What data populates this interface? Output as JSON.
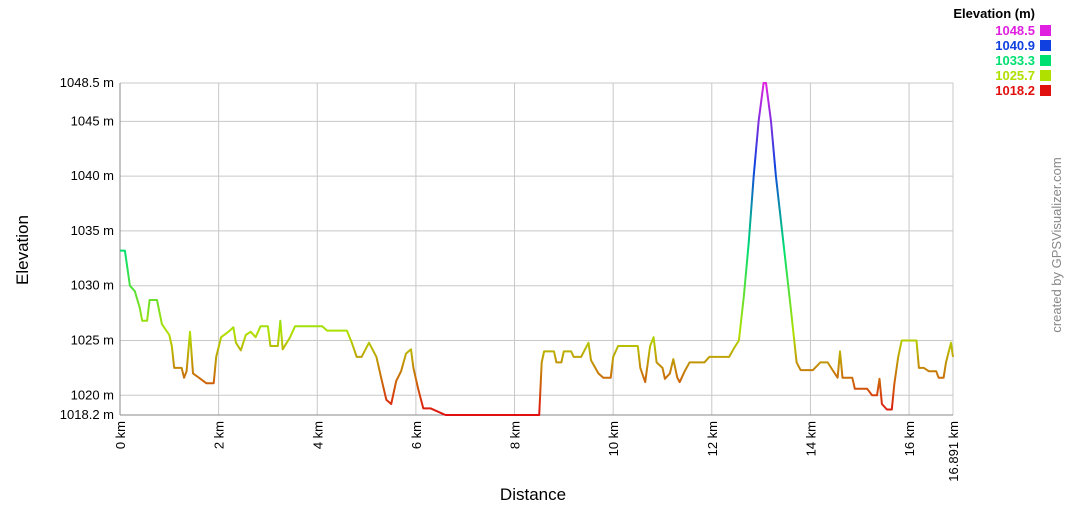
{
  "chart_data": {
    "type": "line",
    "x_label": "Distance",
    "y_label": "Elevation",
    "legend_title": "Elevation (m)",
    "legend": [
      {
        "value": 1048.5,
        "color": "#e020e0"
      },
      {
        "value": 1040.9,
        "color": "#1040e0"
      },
      {
        "value": 1033.3,
        "color": "#00e070"
      },
      {
        "value": 1025.7,
        "color": "#b0e000"
      },
      {
        "value": 1018.2,
        "color": "#e01010"
      }
    ],
    "watermark": "created by GPSVisualizer.com",
    "xlim": [
      0,
      16.891
    ],
    "ylim": [
      1018.2,
      1048.5
    ],
    "xticks": [
      {
        "value": 0,
        "label": "0 km"
      },
      {
        "value": 2,
        "label": "2 km"
      },
      {
        "value": 4,
        "label": "4 km"
      },
      {
        "value": 6,
        "label": "6 km"
      },
      {
        "value": 8,
        "label": "8 km"
      },
      {
        "value": 10,
        "label": "10 km"
      },
      {
        "value": 12,
        "label": "12 km"
      },
      {
        "value": 14,
        "label": "14 km"
      },
      {
        "value": 16,
        "label": "16 km"
      },
      {
        "value": 16.891,
        "label": "16.891 km"
      }
    ],
    "yticks": [
      {
        "value": 1018.2,
        "label": "1018.2 m"
      },
      {
        "value": 1020,
        "label": "1020 m"
      },
      {
        "value": 1025,
        "label": "1025 m"
      },
      {
        "value": 1030,
        "label": "1030 m"
      },
      {
        "value": 1035,
        "label": "1035 m"
      },
      {
        "value": 1040,
        "label": "1040 m"
      },
      {
        "value": 1045,
        "label": "1045 m"
      },
      {
        "value": 1048.5,
        "label": "1048.5 m"
      }
    ],
    "grid": true,
    "x": [
      0,
      0.1,
      0.2,
      0.3,
      0.4,
      0.45,
      0.55,
      0.6,
      0.75,
      0.85,
      1.0,
      1.05,
      1.1,
      1.25,
      1.3,
      1.35,
      1.42,
      1.48,
      1.6,
      1.75,
      1.9,
      1.95,
      2.05,
      2.2,
      2.3,
      2.35,
      2.45,
      2.55,
      2.65,
      2.75,
      2.85,
      3.0,
      3.05,
      3.2,
      3.25,
      3.3,
      3.45,
      3.55,
      4.1,
      4.2,
      4.6,
      4.7,
      4.8,
      4.9,
      5.05,
      5.2,
      5.3,
      5.4,
      5.5,
      5.6,
      5.7,
      5.8,
      5.9,
      5.95,
      6.05,
      6.15,
      6.3,
      6.6,
      8.5,
      8.55,
      8.6,
      8.8,
      8.85,
      8.95,
      9.0,
      9.15,
      9.2,
      9.35,
      9.5,
      9.55,
      9.7,
      9.8,
      9.95,
      10.0,
      10.1,
      10.5,
      10.55,
      10.65,
      10.75,
      10.82,
      10.88,
      11.0,
      11.05,
      11.15,
      11.22,
      11.3,
      11.35,
      11.45,
      11.55,
      11.85,
      11.95,
      12.35,
      12.45,
      12.55,
      12.65,
      12.75,
      12.85,
      12.95,
      13.05,
      13.1,
      13.2,
      13.3,
      13.45,
      13.6,
      13.72,
      13.8,
      14.05,
      14.2,
      14.35,
      14.45,
      14.55,
      14.6,
      14.65,
      14.85,
      14.9,
      15.15,
      15.25,
      15.35,
      15.4,
      15.45,
      15.55,
      15.65,
      15.7,
      15.78,
      15.85,
      16.15,
      16.2,
      16.3,
      16.4,
      16.55,
      16.6,
      16.7,
      16.75,
      16.85,
      16.891
    ],
    "values": [
      1033.2,
      1033.2,
      1030,
      1029.5,
      1028,
      1026.8,
      1026.8,
      1028.7,
      1028.7,
      1026.5,
      1025.5,
      1024.5,
      1022.5,
      1022.5,
      1021.6,
      1022.2,
      1025.8,
      1022,
      1021.6,
      1021.1,
      1021.1,
      1023.5,
      1025.3,
      1025.8,
      1026.2,
      1024.8,
      1024.1,
      1025.5,
      1025.8,
      1025.3,
      1026.3,
      1026.3,
      1024.5,
      1024.5,
      1026.8,
      1024.2,
      1025.3,
      1026.3,
      1026.3,
      1025.9,
      1025.9,
      1024.8,
      1023.5,
      1023.5,
      1024.8,
      1023.5,
      1021.5,
      1019.6,
      1019.2,
      1021.3,
      1022.2,
      1023.8,
      1024.2,
      1022.5,
      1020.5,
      1018.8,
      1018.8,
      1018.2,
      1018.2,
      1023,
      1024,
      1024,
      1023,
      1023,
      1024,
      1024,
      1023.5,
      1023.5,
      1024.8,
      1023.2,
      1022,
      1021.6,
      1021.6,
      1023.5,
      1024.5,
      1024.5,
      1022.5,
      1021.2,
      1024.5,
      1025.3,
      1023,
      1022.5,
      1021.5,
      1022,
      1023.3,
      1021.6,
      1021.2,
      1022.2,
      1023,
      1023,
      1023.5,
      1023.5,
      1024.3,
      1025,
      1029,
      1034,
      1040,
      1045,
      1048.5,
      1048.5,
      1045,
      1040,
      1034,
      1028,
      1023,
      1022.3,
      1022.3,
      1023,
      1023,
      1022.3,
      1021.6,
      1024,
      1021.6,
      1021.6,
      1020.6,
      1020.6,
      1020,
      1020,
      1021.5,
      1019.2,
      1018.7,
      1018.7,
      1021,
      1023.5,
      1025,
      1025,
      1022.5,
      1022.5,
      1022.2,
      1022.2,
      1021.6,
      1021.6,
      1023,
      1024.8,
      1023.5
    ]
  }
}
